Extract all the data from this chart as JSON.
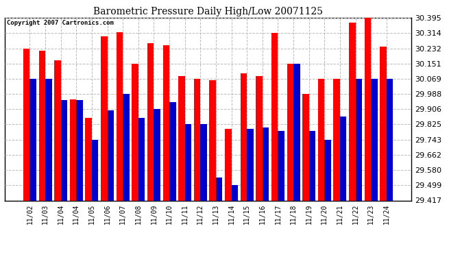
{
  "title": "Barometric Pressure Daily High/Low 20071125",
  "copyright": "Copyright 2007 Cartronics.com",
  "dates": [
    "11/02",
    "11/03",
    "11/04",
    "11/04",
    "11/05",
    "11/06",
    "11/07",
    "11/08",
    "11/09",
    "11/10",
    "11/11",
    "11/12",
    "11/13",
    "11/14",
    "11/15",
    "11/16",
    "11/17",
    "11/18",
    "11/19",
    "11/20",
    "11/21",
    "11/22",
    "11/23",
    "11/24"
  ],
  "highs": [
    30.232,
    30.22,
    30.17,
    29.96,
    29.86,
    30.295,
    30.32,
    30.151,
    30.26,
    30.25,
    30.085,
    30.069,
    30.06,
    29.8,
    30.1,
    30.085,
    30.314,
    30.151,
    29.988,
    30.07,
    30.069,
    30.37,
    30.395,
    30.24
  ],
  "lows": [
    30.069,
    30.069,
    29.955,
    29.955,
    29.743,
    29.9,
    29.988,
    29.86,
    29.906,
    29.943,
    29.825,
    29.825,
    29.54,
    29.499,
    29.8,
    29.81,
    29.79,
    30.151,
    29.79,
    29.743,
    29.868,
    30.069,
    30.069,
    30.069
  ],
  "high_color": "#ff0000",
  "low_color": "#0000cc",
  "bg_color": "#ffffff",
  "grid_color": "#bbbbbb",
  "ymin": 29.417,
  "ymax": 30.395,
  "yticks": [
    29.417,
    29.499,
    29.58,
    29.662,
    29.743,
    29.825,
    29.906,
    29.988,
    30.069,
    30.151,
    30.232,
    30.314,
    30.395
  ]
}
